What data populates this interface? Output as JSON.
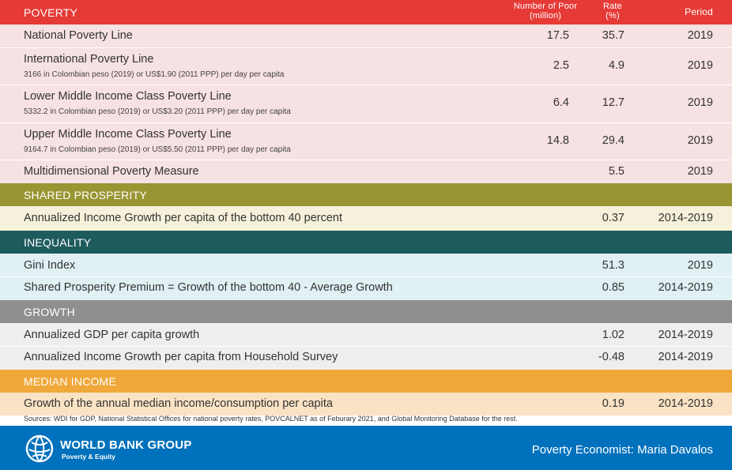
{
  "poverty": {
    "header": "POVERTY",
    "col1": "Number of Poor (million)",
    "col2": "Rate (%)",
    "col3": "Period",
    "rows": [
      {
        "label": "National Poverty Line",
        "sub": "",
        "n": "17.5",
        "r": "35.7",
        "p": "2019"
      },
      {
        "label": "International Poverty Line",
        "sub": "3166 in Colombian peso (2019) or US$1.90 (2011 PPP) per day per capita",
        "n": "2.5",
        "r": "4.9",
        "p": "2019"
      },
      {
        "label": "Lower Middle Income Class Poverty Line",
        "sub": "5332.2 in Colombian peso (2019) or US$3.20 (2011 PPP) per day per capita",
        "n": "6.4",
        "r": "12.7",
        "p": "2019"
      },
      {
        "label": "Upper Middle Income Class Poverty Line",
        "sub": "9164.7 in Colombian peso (2019) or US$5.50 (2011 PPP) per day per capita",
        "n": "14.8",
        "r": "29.4",
        "p": "2019"
      },
      {
        "label": "Multidimensional Poverty Measure",
        "sub": "",
        "n": "",
        "r": "5.5",
        "p": "2019"
      }
    ]
  },
  "shared_prosperity": {
    "header": "SHARED PROSPERITY",
    "rows": [
      {
        "label": "Annualized Income Growth per capita of the bottom 40 percent",
        "r": "0.37",
        "p": "2014-2019"
      }
    ]
  },
  "inequality": {
    "header": "INEQUALITY",
    "rows": [
      {
        "label": "Gini Index",
        "r": "51.3",
        "p": "2019"
      },
      {
        "label": "Shared Prosperity Premium = Growth of the bottom 40 - Average Growth",
        "r": "0.85",
        "p": "2014-2019"
      }
    ]
  },
  "growth": {
    "header": "GROWTH",
    "rows": [
      {
        "label": "Annualized GDP per capita growth",
        "r": "1.02",
        "p": "2014-2019"
      },
      {
        "label": "Annualized Income Growth per capita from Household Survey",
        "r": "-0.48",
        "p": "2014-2019"
      }
    ]
  },
  "median_income": {
    "header": "MEDIAN INCOME",
    "rows": [
      {
        "label": "Growth of the annual median income/consumption per capita",
        "r": "0.19",
        "p": "2014-2019"
      }
    ]
  },
  "sources": "Sources: WDI for GDP, National Statistical Offices for national poverty rates, POVCALNET as of Feburary 2021, and Global Monitoring Database for the rest.",
  "footer": {
    "org": "WORLD BANK GROUP",
    "tagline": "Poverty & Equity",
    "economist": "Poverty Economist: Maria Davalos",
    "logo_icon": "globe-icon"
  },
  "colors": {
    "poverty": "#e63a36",
    "poverty_bg": "#f6e1e3",
    "shared": "#999533",
    "shared_bg": "#f6f1da",
    "inequality": "#1e5b5e",
    "inequality_bg": "#e0f0f3",
    "growth": "#8f8f8f",
    "growth_bg": "#eeeeee",
    "median": "#f0a83a",
    "median_bg": "#fae3c4",
    "brand": "#0071bc"
  }
}
